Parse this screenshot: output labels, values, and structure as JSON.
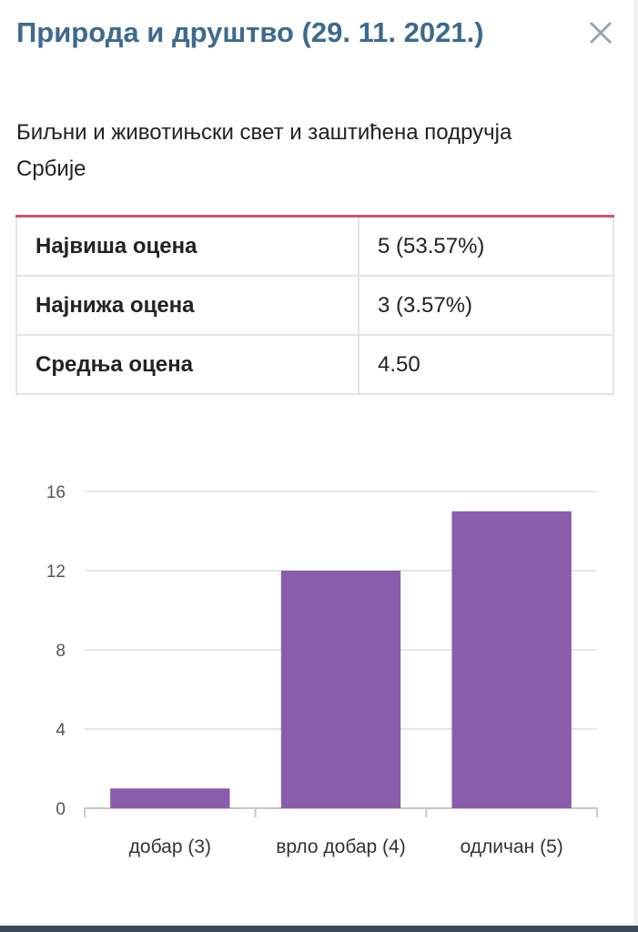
{
  "header": {
    "title": "Природа и друштво (29. 11. 2021.)",
    "close_icon": "close-icon"
  },
  "subtitle": "Биљни и животињски свет и заштићена подручја Србије",
  "stats": [
    {
      "label": "Највиша оцена",
      "value": "5 (53.57%)"
    },
    {
      "label": "Најнижа оцена",
      "value": "3 (3.57%)"
    },
    {
      "label": "Средња оцена",
      "value": "4.50"
    }
  ],
  "colors": {
    "accent": "#d05166",
    "title": "#3d6a8e",
    "bar": "#8a5dac"
  },
  "chart_data": {
    "type": "bar",
    "categories": [
      "добар (3)",
      "врло добар (4)",
      "одличан (5)"
    ],
    "values": [
      1,
      12,
      15
    ],
    "ylim": [
      0,
      16
    ],
    "yticks": [
      "0",
      "4",
      "8",
      "12",
      "16"
    ],
    "grid": true
  }
}
